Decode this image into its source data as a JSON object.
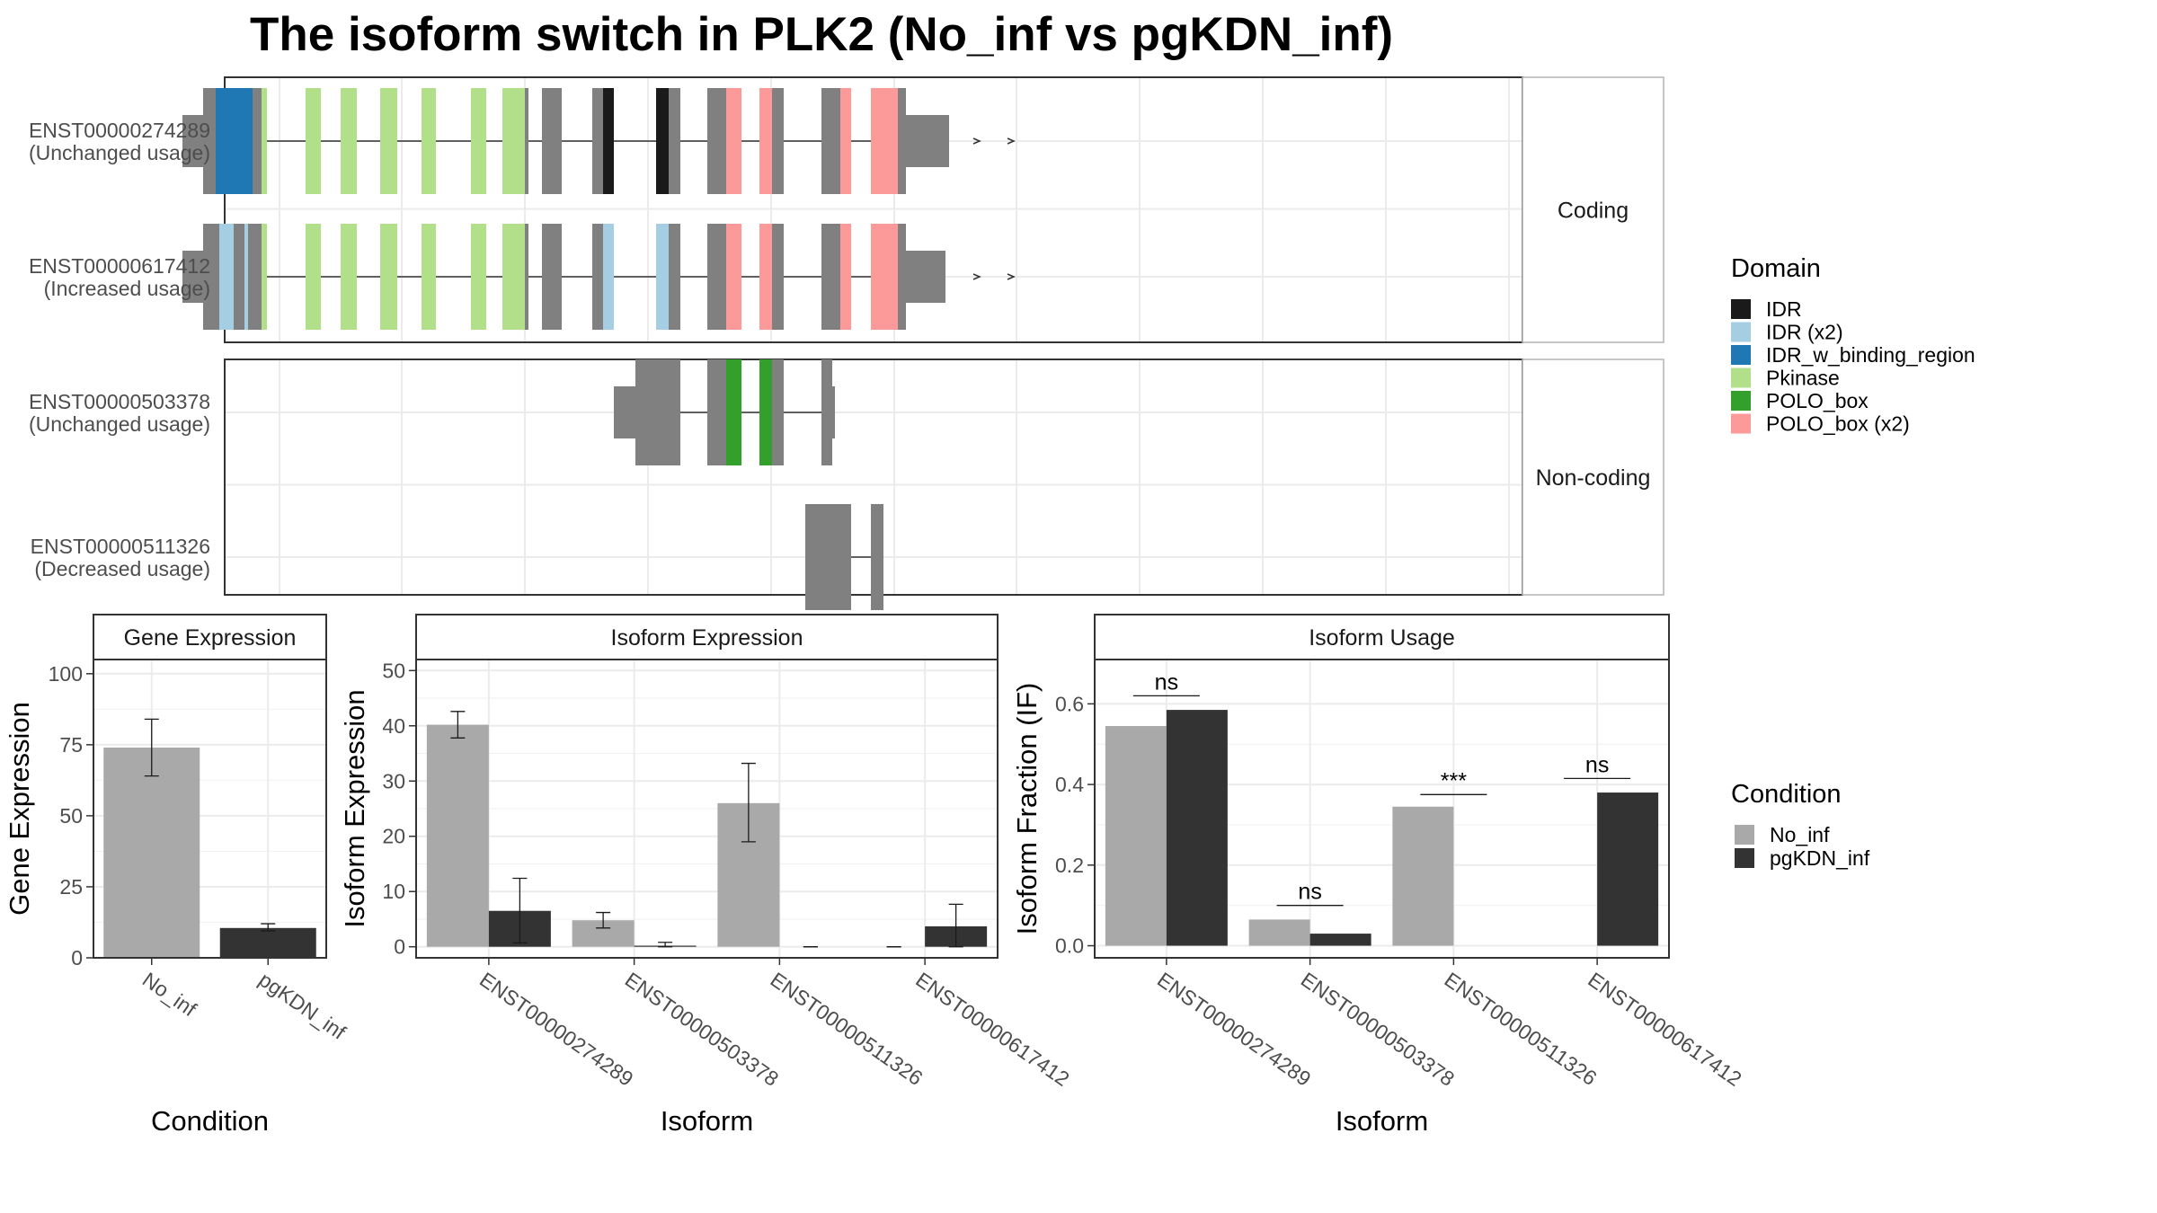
{
  "figure": {
    "title": "The isoform switch in PLK2 (No_inf vs pgKDN_inf)"
  },
  "colors": {
    "IDR": "#1a1a1a",
    "IDR (x2)": "#a6cee3",
    "IDR_w_binding_region": "#1f78b4",
    "Pkinase": "#b2df8a",
    "POLO_box": "#33a02c",
    "POLO_box (x2)": "#fb9a99",
    "exon": "#808080",
    "No_inf": "#a9a9a9",
    "pgKDN_inf": "#333333"
  },
  "legends": {
    "domain": {
      "title": "Domain",
      "items": [
        "IDR",
        "IDR (x2)",
        "IDR_w_binding_region",
        "Pkinase",
        "POLO_box",
        "POLO_box (x2)"
      ]
    },
    "condition": {
      "title": "Condition",
      "items": [
        "No_inf",
        "pgKDN_inf"
      ]
    }
  },
  "chart_data": [
    {
      "type": "table",
      "panel": "isoform-structures",
      "groups": [
        {
          "label": "Coding",
          "transcripts": [
            {
              "id": "ENST00000274289",
              "usage": "(Unchanged usage)",
              "thin_exons": [
                [
                  203,
                  226
                ],
                [
                  1008,
                  1056
                ]
              ],
              "thick_exons": [
                [
                  226,
                  291
                ],
                [
                  340,
                  357
                ],
                [
                  379,
                  397
                ],
                [
                  423,
                  442
                ],
                [
                  469,
                  485
                ],
                [
                  524,
                  541
                ],
                [
                  559,
                  588
                ],
                [
                  603,
                  625
                ],
                [
                  659,
                  683
                ],
                [
                  730,
                  757
                ],
                [
                  787,
                  825
                ],
                [
                  845,
                  872
                ],
                [
                  914,
                  947
                ],
                [
                  969,
                  1008
                ]
              ],
              "domains": [
                {
                  "name": "IDR_w_binding_region",
                  "span": [
                    240,
                    281
                  ]
                },
                {
                  "name": "Pkinase",
                  "span": [
                    291,
                    297
                  ]
                },
                {
                  "name": "Pkinase",
                  "span": [
                    340,
                    357
                  ]
                },
                {
                  "name": "Pkinase",
                  "span": [
                    379,
                    397
                  ]
                },
                {
                  "name": "Pkinase",
                  "span": [
                    423,
                    442
                  ]
                },
                {
                  "name": "Pkinase",
                  "span": [
                    469,
                    485
                  ]
                },
                {
                  "name": "Pkinase",
                  "span": [
                    524,
                    541
                  ]
                },
                {
                  "name": "Pkinase",
                  "span": [
                    559,
                    584
                  ]
                },
                {
                  "name": "IDR",
                  "span": [
                    671,
                    683
                  ]
                },
                {
                  "name": "IDR",
                  "span": [
                    730,
                    744
                  ]
                },
                {
                  "name": "POLO_box (x2)",
                  "span": [
                    808,
                    825
                  ]
                },
                {
                  "name": "POLO_box (x2)",
                  "span": [
                    845,
                    859
                  ]
                },
                {
                  "name": "POLO_box (x2)",
                  "span": [
                    935,
                    947
                  ]
                },
                {
                  "name": "POLO_box (x2)",
                  "span": [
                    969,
                    999
                  ]
                }
              ]
            },
            {
              "id": "ENST00000617412",
              "usage": "(Increased usage)",
              "thin_exons": [
                [
                  203,
                  226
                ],
                [
                  1008,
                  1052
                ]
              ],
              "thick_exons": [
                [
                  226,
                  291
                ],
                [
                  340,
                  357
                ],
                [
                  379,
                  397
                ],
                [
                  423,
                  442
                ],
                [
                  469,
                  485
                ],
                [
                  524,
                  541
                ],
                [
                  559,
                  588
                ],
                [
                  603,
                  625
                ],
                [
                  659,
                  683
                ],
                [
                  730,
                  757
                ],
                [
                  787,
                  825
                ],
                [
                  845,
                  872
                ],
                [
                  914,
                  947
                ],
                [
                  969,
                  1008
                ]
              ],
              "domains": [
                {
                  "name": "IDR (x2)",
                  "span": [
                    244,
                    260
                  ]
                },
                {
                  "name": "IDR (x2)",
                  "span": [
                    272,
                    276
                  ]
                },
                {
                  "name": "Pkinase",
                  "span": [
                    291,
                    297
                  ]
                },
                {
                  "name": "Pkinase",
                  "span": [
                    340,
                    357
                  ]
                },
                {
                  "name": "Pkinase",
                  "span": [
                    379,
                    397
                  ]
                },
                {
                  "name": "Pkinase",
                  "span": [
                    423,
                    442
                  ]
                },
                {
                  "name": "Pkinase",
                  "span": [
                    469,
                    485
                  ]
                },
                {
                  "name": "Pkinase",
                  "span": [
                    524,
                    541
                  ]
                },
                {
                  "name": "Pkinase",
                  "span": [
                    559,
                    584
                  ]
                },
                {
                  "name": "IDR (x2)",
                  "span": [
                    671,
                    683
                  ]
                },
                {
                  "name": "IDR (x2)",
                  "span": [
                    730,
                    744
                  ]
                },
                {
                  "name": "POLO_box (x2)",
                  "span": [
                    808,
                    825
                  ]
                },
                {
                  "name": "POLO_box (x2)",
                  "span": [
                    845,
                    859
                  ]
                },
                {
                  "name": "POLO_box (x2)",
                  "span": [
                    935,
                    947
                  ]
                },
                {
                  "name": "POLO_box (x2)",
                  "span": [
                    969,
                    999
                  ]
                }
              ]
            }
          ]
        },
        {
          "label": "Non-coding",
          "transcripts": [
            {
              "id": "ENST00000503378",
              "usage": "(Unchanged usage)",
              "thin_exons": [
                [
                  683,
                  707
                ],
                [
                  926,
                  929
                ]
              ],
              "thick_exons": [
                [
                  707,
                  757
                ],
                [
                  787,
                  825
                ],
                [
                  845,
                  872
                ],
                [
                  914,
                  926
                ]
              ],
              "domains": [
                {
                  "name": "POLO_box",
                  "span": [
                    808,
                    825
                  ]
                },
                {
                  "name": "POLO_box",
                  "span": [
                    845,
                    859
                  ]
                }
              ]
            },
            {
              "id": "ENST00000511326",
              "usage": "(Decreased usage)",
              "thin_exons": [],
              "thick_exons": [
                [
                  896,
                  947
                ],
                [
                  969,
                  983
                ]
              ],
              "domains": []
            }
          ]
        }
      ]
    },
    {
      "type": "bar",
      "panel": "gene-expression",
      "strip": "Gene Expression",
      "xlabel": "Condition",
      "ylabel": "Gene Expression",
      "categories": [
        "No_inf",
        "pgKDN_inf"
      ],
      "values": [
        74,
        10.5
      ],
      "errors": [
        [
          64,
          84
        ],
        [
          9.5,
          12
        ]
      ],
      "ylim": [
        0,
        105
      ],
      "yticks": [
        0,
        25,
        50,
        75,
        100
      ]
    },
    {
      "type": "bar",
      "panel": "isoform-expression",
      "strip": "Isoform Expression",
      "xlabel": "Isoform",
      "ylabel": "Isoform Expression",
      "categories": [
        "ENST00000274289",
        "ENST00000503378",
        "ENST00000511326",
        "ENST00000617412"
      ],
      "series": [
        {
          "name": "No_inf",
          "values": [
            40.2,
            4.8,
            26,
            0
          ],
          "errors": [
            [
              37.8,
              42.6
            ],
            [
              3.4,
              6.2
            ],
            [
              19,
              33.2
            ],
            [
              0,
              0
            ]
          ]
        },
        {
          "name": "pgKDN_inf",
          "values": [
            6.5,
            0.2,
            0,
            3.7
          ],
          "errors": [
            [
              0.7,
              12.4
            ],
            [
              0,
              0.8
            ],
            [
              0,
              0
            ],
            [
              0,
              7.7
            ]
          ]
        }
      ],
      "ylim": [
        -2,
        52
      ],
      "yticks": [
        0,
        10,
        20,
        30,
        40,
        50
      ]
    },
    {
      "type": "bar",
      "panel": "isoform-usage",
      "strip": "Isoform Usage",
      "xlabel": "Isoform",
      "ylabel": "Isoform Fraction (IF)",
      "categories": [
        "ENST00000274289",
        "ENST00000503378",
        "ENST00000511326",
        "ENST00000617412"
      ],
      "series": [
        {
          "name": "No_inf",
          "values": [
            0.545,
            0.065,
            0.345,
            0
          ]
        },
        {
          "name": "pgKDN_inf",
          "values": [
            0.585,
            0.03,
            0,
            0.38
          ]
        }
      ],
      "annotations": [
        {
          "category": "ENST00000274289",
          "text": "ns",
          "y": 0.62
        },
        {
          "category": "ENST00000503378",
          "text": "ns",
          "y": 0.1
        },
        {
          "category": "ENST00000511326",
          "text": "***",
          "y": 0.375
        },
        {
          "category": "ENST00000617412",
          "text": "ns",
          "y": 0.415
        }
      ],
      "ylim": [
        -0.03,
        0.71
      ],
      "yticks": [
        0.0,
        0.2,
        0.4,
        0.6
      ],
      "ytick_labels": [
        "0.0",
        "0.2",
        "0.4",
        "0.6"
      ]
    }
  ]
}
